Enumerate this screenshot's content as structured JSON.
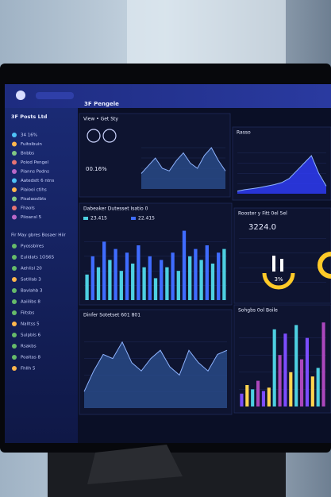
{
  "header": {
    "title": "3F Pengele"
  },
  "sidebar": {
    "title": "3F Posts Ltd",
    "items": [
      "34 16%",
      "Fuitoibuin",
      "Bnbbs",
      "Poiod Pengel",
      "Pianns Podns",
      "Aatedstt 6 ntns",
      "Piaiooi ctihs",
      "Pisalaoslbts",
      "Fhaols",
      "Piioansl 5"
    ],
    "section": "Fir May gbres Bosaer Hiir",
    "items2": [
      "Pyossblres",
      "Eulidats 1OS6S",
      "Aehlisl 20",
      "Sotlllab 3",
      "Bavlahb 3",
      "Aaiilibs 8",
      "Fiitsbs",
      "Nalltss 5",
      "Sulpbls 6",
      "Rsakbs",
      "Poaltas 8",
      "Fhllh 5"
    ]
  },
  "panels": [
    {
      "title": "View • Get Sty",
      "stat": "00.16%",
      "area": [
        30,
        45,
        60,
        40,
        35,
        55,
        70,
        50,
        40,
        65,
        80,
        55,
        35
      ]
    },
    {
      "title": "Rasso",
      "area": [
        5,
        8,
        10,
        12,
        15,
        18,
        22,
        30,
        45,
        60,
        75,
        40,
        15
      ]
    },
    {
      "title": "Dabeaker Dutesset Isatio 0",
      "stats": [
        "23.415",
        "22.415"
      ],
      "bars": [
        35,
        60,
        45,
        80,
        55,
        70,
        40,
        65,
        50,
        75,
        45,
        60,
        30,
        55,
        45,
        65,
        40,
        95,
        60,
        70,
        55,
        75,
        50,
        65,
        70
      ]
    },
    {
      "title": "Rooster y Fitt 0el 5el",
      "stat": "3224.0",
      "gauge": "3%"
    },
    {
      "title": "Dinfer Sotetset 601 801",
      "area": [
        20,
        45,
        65,
        60,
        80,
        55,
        45,
        60,
        70,
        50,
        40,
        70,
        55,
        45,
        65,
        70
      ]
    },
    {
      "title": "Sohgbs 0ol Boile",
      "bars": [
        15,
        25,
        20,
        30,
        18,
        22,
        90,
        60,
        85,
        40,
        95,
        55,
        80,
        35,
        45,
        98
      ]
    }
  ]
}
